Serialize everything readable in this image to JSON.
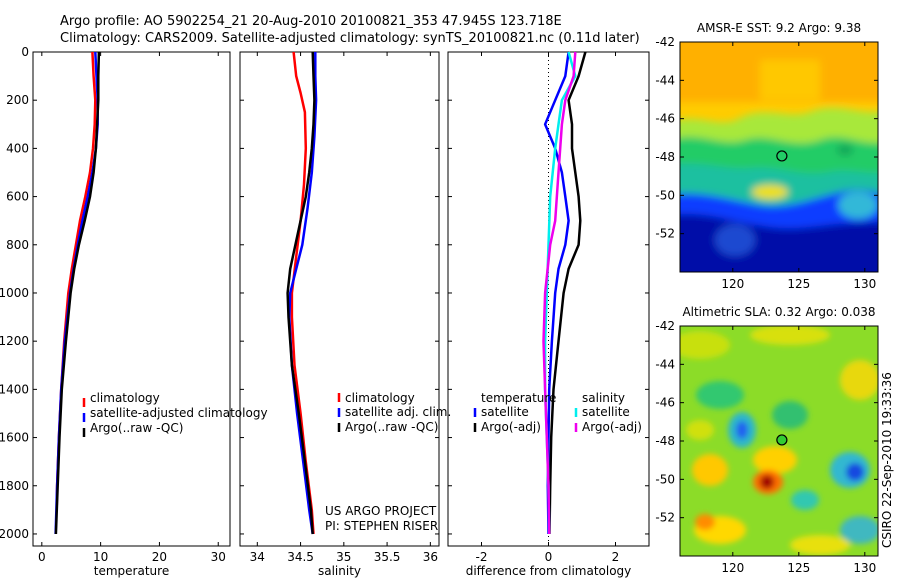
{
  "header": {
    "line1": "Argo profile: AO 5902254_21 20-Aug-2010 20100821_353 47.945S 123.718E",
    "line2": "Climatology: CARS2009. Satellite-adjusted climatology: synTS_20100821.nc (0.11d later)"
  },
  "credit": {
    "line1": "US ARGO PROJECT",
    "line2": "PI: STEPHEN RISER"
  },
  "side_label": "CSIRO 22-Sep-2010 19:33:36",
  "colors": {
    "red": "#ff0000",
    "blue": "#0000ff",
    "black": "#000000",
    "cyan": "#00eeee",
    "magenta": "#ee00ee"
  },
  "chart_data": [
    {
      "type": "line",
      "id": "temperature",
      "xlabel": "temperature",
      "ylabel": "depth",
      "xlim": [
        -1.5,
        32
      ],
      "ylim": [
        2050,
        0
      ],
      "xticks": [
        0,
        10,
        20,
        30
      ],
      "yticks": [
        0,
        200,
        400,
        600,
        800,
        1000,
        1200,
        1400,
        1600,
        1800,
        2000
      ],
      "legend": [
        "climatology",
        "satellite-adjusted climatology",
        "Argo(..raw -QC)"
      ],
      "series": [
        {
          "name": "climatology",
          "color": "red",
          "points": [
            [
              8.6,
              0
            ],
            [
              8.8,
              100
            ],
            [
              9.1,
              200
            ],
            [
              9.0,
              300
            ],
            [
              8.7,
              400
            ],
            [
              8.2,
              500
            ],
            [
              7.4,
              600
            ],
            [
              6.5,
              700
            ],
            [
              5.8,
              800
            ],
            [
              5.1,
              900
            ],
            [
              4.5,
              1000
            ],
            [
              3.8,
              1200
            ],
            [
              3.3,
              1400
            ],
            [
              2.9,
              1600
            ],
            [
              2.6,
              1800
            ],
            [
              2.55,
              1880
            ]
          ]
        },
        {
          "name": "satellite-adjusted climatology",
          "color": "blue",
          "points": [
            [
              9.1,
              0
            ],
            [
              9.3,
              100
            ],
            [
              9.5,
              200
            ],
            [
              9.5,
              300
            ],
            [
              9.2,
              400
            ],
            [
              8.6,
              500
            ],
            [
              7.8,
              600
            ],
            [
              6.9,
              700
            ],
            [
              6.1,
              800
            ],
            [
              5.4,
              900
            ],
            [
              4.8,
              1000
            ],
            [
              3.9,
              1200
            ],
            [
              3.3,
              1400
            ],
            [
              2.9,
              1600
            ],
            [
              2.6,
              1800
            ],
            [
              2.35,
              2000
            ]
          ]
        },
        {
          "name": "Argo(..raw -QC)",
          "color": "black",
          "points": [
            [
              9.7,
              0
            ],
            [
              9.6,
              100
            ],
            [
              9.6,
              200
            ],
            [
              9.4,
              300
            ],
            [
              9.2,
              400
            ],
            [
              8.8,
              500
            ],
            [
              8.2,
              600
            ],
            [
              7.3,
              700
            ],
            [
              6.3,
              800
            ],
            [
              5.5,
              900
            ],
            [
              4.9,
              1000
            ],
            [
              4.1,
              1200
            ],
            [
              3.4,
              1400
            ],
            [
              3.0,
              1600
            ],
            [
              2.7,
              1800
            ],
            [
              2.4,
              2000
            ]
          ]
        }
      ]
    },
    {
      "type": "line",
      "id": "salinity",
      "xlabel": "salinity",
      "xlim": [
        33.8,
        36.1
      ],
      "ylim": [
        2050,
        0
      ],
      "xticks": [
        34,
        34.5,
        35,
        35.5,
        36
      ],
      "legend": [
        "climatology",
        "satellite adj. clim.",
        "Argo(..raw -QC)"
      ],
      "series": [
        {
          "name": "climatology",
          "color": "red",
          "points": [
            [
              34.42,
              0
            ],
            [
              34.45,
              100
            ],
            [
              34.5,
              170
            ],
            [
              34.55,
              250
            ],
            [
              34.56,
              400
            ],
            [
              34.54,
              550
            ],
            [
              34.5,
              700
            ],
            [
              34.45,
              850
            ],
            [
              34.4,
              1000
            ],
            [
              34.4,
              1100
            ],
            [
              34.43,
              1300
            ],
            [
              34.5,
              1500
            ],
            [
              34.56,
              1700
            ],
            [
              34.63,
              1900
            ],
            [
              34.65,
              2000
            ]
          ]
        },
        {
          "name": "satellite adj. clim.",
          "color": "blue",
          "points": [
            [
              34.67,
              0
            ],
            [
              34.67,
              100
            ],
            [
              34.68,
              200
            ],
            [
              34.66,
              350
            ],
            [
              34.63,
              500
            ],
            [
              34.58,
              650
            ],
            [
              34.52,
              800
            ],
            [
              34.45,
              900
            ],
            [
              34.38,
              1000
            ],
            [
              34.37,
              1100
            ],
            [
              34.4,
              1300
            ],
            [
              34.46,
              1500
            ],
            [
              34.53,
              1700
            ],
            [
              34.6,
              1900
            ],
            [
              34.64,
              2000
            ]
          ]
        },
        {
          "name": "Argo(..raw -QC)",
          "color": "black",
          "points": [
            [
              34.64,
              0
            ],
            [
              34.65,
              100
            ],
            [
              34.66,
              200
            ],
            [
              34.65,
              300
            ],
            [
              34.63,
              400
            ],
            [
              34.6,
              500
            ],
            [
              34.56,
              600
            ],
            [
              34.5,
              700
            ],
            [
              34.44,
              800
            ],
            [
              34.38,
              900
            ],
            [
              34.35,
              1000
            ],
            [
              34.36,
              1100
            ],
            [
              34.4,
              1300
            ],
            [
              34.48,
              1500
            ],
            [
              34.55,
              1700
            ],
            [
              34.62,
              1900
            ],
            [
              34.64,
              2000
            ]
          ]
        }
      ]
    },
    {
      "type": "line",
      "id": "difference",
      "xlabel": "difference from climatology",
      "xlim": [
        -3,
        3
      ],
      "ylim": [
        2050,
        0
      ],
      "xticks": [
        -2,
        0,
        2
      ],
      "legend_headers": [
        "temperature",
        "salinity"
      ],
      "legend": [
        "satellite",
        "Argo(-adj)",
        "satellite",
        "Argo(-adj)"
      ],
      "series": [
        {
          "name": "temperature satellite",
          "color": "blue",
          "points": [
            [
              0.6,
              0
            ],
            [
              0.5,
              100
            ],
            [
              0.2,
              200
            ],
            [
              -0.1,
              300
            ],
            [
              0.2,
              400
            ],
            [
              0.4,
              500
            ],
            [
              0.5,
              600
            ],
            [
              0.6,
              700
            ],
            [
              0.5,
              800
            ],
            [
              0.3,
              900
            ],
            [
              0.2,
              1000
            ],
            [
              0.1,
              1200
            ],
            [
              0.02,
              1400
            ],
            [
              0.0,
              1600
            ],
            [
              -0.02,
              1800
            ],
            [
              0.0,
              2000
            ]
          ]
        },
        {
          "name": "temperature Argo(-adj)",
          "color": "black",
          "points": [
            [
              1.1,
              0
            ],
            [
              0.9,
              100
            ],
            [
              0.6,
              200
            ],
            [
              0.7,
              300
            ],
            [
              0.7,
              400
            ],
            [
              0.8,
              500
            ],
            [
              0.9,
              600
            ],
            [
              0.95,
              700
            ],
            [
              0.9,
              800
            ],
            [
              0.6,
              900
            ],
            [
              0.45,
              1000
            ],
            [
              0.3,
              1200
            ],
            [
              0.15,
              1400
            ],
            [
              0.08,
              1600
            ],
            [
              0.05,
              1800
            ],
            [
              0.03,
              2000
            ]
          ]
        },
        {
          "name": "salinity satellite",
          "color": "cyan",
          "points": [
            [
              0.6,
              0
            ],
            [
              0.8,
              100
            ],
            [
              0.4,
              200
            ],
            [
              0.3,
              300
            ],
            [
              0.2,
              400
            ],
            [
              0.05,
              600
            ],
            [
              0.0,
              800
            ],
            [
              -0.05,
              1000
            ],
            [
              -0.1,
              1200
            ],
            [
              -0.1,
              1400
            ],
            [
              -0.05,
              1600
            ],
            [
              0.0,
              1800
            ],
            [
              0.02,
              2000
            ]
          ]
        },
        {
          "name": "salinity Argo(-adj)",
          "color": "magenta",
          "points": [
            [
              0.8,
              0
            ],
            [
              0.75,
              100
            ],
            [
              0.5,
              200
            ],
            [
              0.4,
              300
            ],
            [
              0.35,
              400
            ],
            [
              0.3,
              500
            ],
            [
              0.2,
              700
            ],
            [
              0.05,
              800
            ],
            [
              -0.1,
              1000
            ],
            [
              -0.15,
              1200
            ],
            [
              -0.1,
              1400
            ],
            [
              -0.05,
              1600
            ],
            [
              0.0,
              1800
            ],
            [
              0.02,
              2000
            ]
          ]
        }
      ]
    },
    {
      "type": "heatmap",
      "id": "sst_map",
      "title": "AMSR-E SST: 9.2 Argo: 9.38",
      "xlim": [
        116,
        131
      ],
      "ylim": [
        -54,
        -42
      ],
      "xticks": [
        120,
        125,
        130
      ],
      "yticks": [
        -42,
        -44,
        -46,
        -48,
        -50,
        -52
      ],
      "marker": [
        123.718,
        -47.945
      ]
    },
    {
      "type": "heatmap",
      "id": "sla_map",
      "title": "Altimetric SLA: 0.32 Argo: 0.038",
      "xlim": [
        116,
        131
      ],
      "ylim": [
        -54,
        -42
      ],
      "xticks": [
        120,
        125,
        130
      ],
      "yticks": [
        -42,
        -44,
        -46,
        -48,
        -50,
        -52
      ],
      "marker": [
        123.718,
        -47.945
      ]
    }
  ]
}
